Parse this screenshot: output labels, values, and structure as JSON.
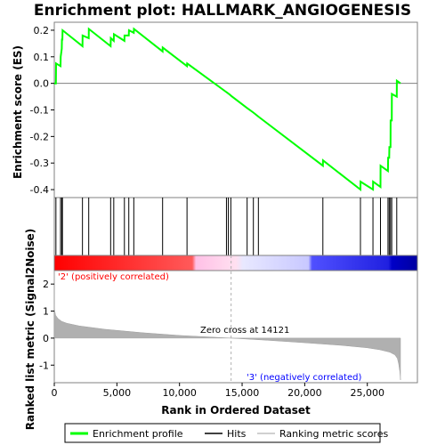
{
  "chart_data": {
    "type": "line",
    "title": "Enrichment plot: HALLMARK_ANGIOGENESIS",
    "es_plot": {
      "ylabel": "Enrichment score (ES)",
      "ylim": [
        -0.43,
        0.23
      ],
      "yticks": [
        0.2,
        0.1,
        0.0,
        -0.1,
        -0.2,
        -0.3,
        -0.4
      ],
      "ytick_labels": [
        "0.2",
        "0.1",
        "0.0",
        "-0.1",
        "-0.2",
        "-0.3",
        "-0.4"
      ],
      "line_color": "#00ff00",
      "series": [
        {
          "name": "Enrichment profile",
          "x": [
            0,
            130,
            140,
            500,
            510,
            600,
            610,
            650,
            660,
            2250,
            2260,
            2750,
            2760,
            4500,
            4510,
            4750,
            4760,
            5600,
            5610,
            5950,
            5960,
            6350,
            6360,
            8650,
            8660,
            10600,
            10610,
            13800,
            14000,
            14100,
            14121,
            15400,
            15900,
            16300,
            21450,
            21460,
            24450,
            24460,
            25450,
            25460,
            26050,
            26060,
            26650,
            26660,
            26750,
            26760,
            26850,
            26860,
            26950,
            26960,
            27350,
            27360,
            27650
          ],
          "y": [
            0.0,
            0.0,
            0.075,
            0.065,
            0.1,
            0.13,
            0.165,
            0.165,
            0.2,
            0.14,
            0.18,
            0.17,
            0.205,
            0.14,
            0.17,
            0.16,
            0.185,
            0.16,
            0.18,
            0.18,
            0.2,
            0.19,
            0.205,
            0.12,
            0.135,
            0.065,
            0.075,
            -0.035,
            -0.042,
            -0.046,
            -0.047,
            -0.093,
            -0.11,
            -0.125,
            -0.31,
            -0.29,
            -0.4,
            -0.37,
            -0.4,
            -0.37,
            -0.39,
            -0.31,
            -0.33,
            -0.28,
            -0.28,
            -0.24,
            -0.24,
            -0.14,
            -0.14,
            -0.04,
            -0.05,
            0.01,
            0.0
          ]
        }
      ]
    },
    "hits": {
      "name": "Hits",
      "positions": [
        130,
        500,
        600,
        650,
        2250,
        2750,
        4500,
        4750,
        5600,
        5950,
        6350,
        8650,
        10600,
        13750,
        13900,
        14100,
        15400,
        15900,
        16300,
        21450,
        24450,
        25450,
        26050,
        26650,
        26750,
        26850,
        26950,
        27350
      ]
    },
    "metric_plot": {
      "ylabel": "Ranked list metric (Signal2Noise)",
      "xlabel": "Rank in Ordered Dataset",
      "xlim": [
        0,
        29000
      ],
      "ylim": [
        -1.65,
        2.5
      ],
      "xticks": [
        0,
        5000,
        10000,
        15000,
        20000,
        25000
      ],
      "xtick_labels": [
        "0",
        "5,000",
        "10,000",
        "15,000",
        "20,000",
        "25,000"
      ],
      "yticks": [
        2,
        1,
        0,
        -1
      ],
      "ytick_labels": [
        "2",
        "1",
        "0",
        "-1"
      ],
      "series": [
        {
          "name": "Ranking metric scores",
          "x": [
            0,
            10,
            100,
            300,
            600,
            1000,
            2000,
            4000,
            7000,
            10000,
            14121,
            17000,
            20000,
            23000,
            25000,
            26000,
            26800,
            27200,
            27400,
            27500,
            27600,
            27650
          ],
          "y": [
            2.5,
            1.1,
            0.85,
            0.72,
            0.62,
            0.55,
            0.45,
            0.33,
            0.2,
            0.1,
            0.0,
            -0.08,
            -0.17,
            -0.27,
            -0.36,
            -0.43,
            -0.52,
            -0.62,
            -0.75,
            -0.95,
            -1.25,
            -1.55
          ]
        }
      ]
    },
    "annotations": {
      "positive": "'2' (positively correlated)",
      "negative": "'3' (negatively correlated)",
      "zero_cross": "Zero cross at 14121",
      "zero_cross_rank": 14121
    },
    "legend": {
      "placement": "bottom",
      "items": [
        {
          "label": "Enrichment profile",
          "color": "#00ff00"
        },
        {
          "label": "Hits",
          "color": "#000000"
        },
        {
          "label": "Ranking metric scores",
          "color": "#c0c0c0"
        }
      ]
    },
    "colors": {
      "positive_text": "#ff0000",
      "negative_text": "#0000ff",
      "fill": "#b0b0b0"
    }
  }
}
